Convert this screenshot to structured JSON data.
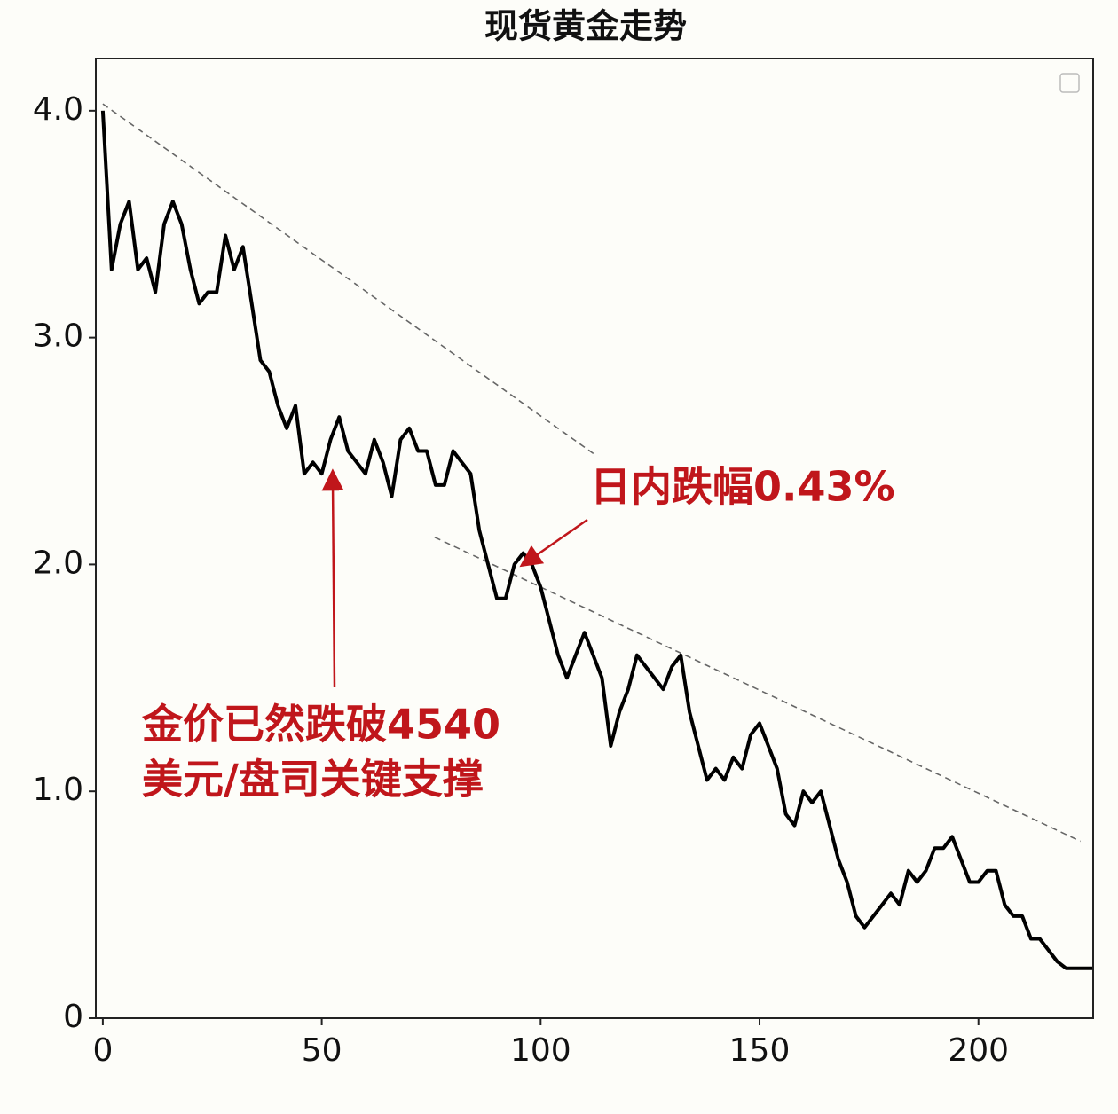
{
  "chart_data": {
    "type": "line",
    "title": "现货黄金走势",
    "x": [
      0,
      2,
      4,
      6,
      8,
      10,
      12,
      14,
      16,
      18,
      20,
      22,
      24,
      26,
      28,
      30,
      32,
      34,
      36,
      38,
      40,
      42,
      44,
      46,
      48,
      50,
      52,
      54,
      56,
      58,
      60,
      62,
      64,
      66,
      68,
      70,
      72,
      74,
      76,
      78,
      80,
      82,
      84,
      86,
      88,
      90,
      92,
      94,
      96,
      98,
      100,
      102,
      104,
      106,
      108,
      110,
      112,
      114,
      116,
      118,
      120,
      122,
      124,
      126,
      128,
      130,
      132,
      134,
      136,
      138,
      140,
      142,
      144,
      146,
      148,
      150,
      152,
      154,
      156,
      158,
      160,
      162,
      164,
      166,
      168,
      170,
      172,
      174,
      176,
      178,
      180,
      182,
      184,
      186,
      188,
      190,
      192,
      194,
      196,
      198,
      200,
      202,
      204,
      206,
      208,
      210,
      212,
      214,
      216,
      218,
      220,
      222,
      224,
      226
    ],
    "series": [
      {
        "color": "#000000",
        "values": [
          4.0,
          3.3,
          3.5,
          3.6,
          3.3,
          3.35,
          3.2,
          3.5,
          3.6,
          3.5,
          3.3,
          3.15,
          3.2,
          3.2,
          3.45,
          3.3,
          3.4,
          3.15,
          2.9,
          2.85,
          2.7,
          2.6,
          2.7,
          2.4,
          2.45,
          2.4,
          2.55,
          2.65,
          2.5,
          2.45,
          2.4,
          2.55,
          2.45,
          2.3,
          2.55,
          2.6,
          2.5,
          2.5,
          2.35,
          2.35,
          2.5,
          2.45,
          2.4,
          2.15,
          2.0,
          1.85,
          1.85,
          2.0,
          2.05,
          2.0,
          1.9,
          1.75,
          1.6,
          1.5,
          1.6,
          1.7,
          1.6,
          1.5,
          1.2,
          1.35,
          1.45,
          1.6,
          1.55,
          1.5,
          1.45,
          1.55,
          1.6,
          1.35,
          1.2,
          1.05,
          1.1,
          1.05,
          1.15,
          1.1,
          1.25,
          1.3,
          1.2,
          1.1,
          0.9,
          0.85,
          1.0,
          0.95,
          1.0,
          0.85,
          0.7,
          0.6,
          0.45,
          0.4,
          0.45,
          0.5,
          0.55,
          0.5,
          0.65,
          0.6,
          0.65,
          0.75,
          0.75,
          0.8,
          0.7,
          0.6,
          0.6,
          0.65,
          0.65,
          0.5,
          0.45,
          0.45,
          0.35,
          0.35,
          0.3,
          0.25,
          0.22,
          0.22,
          0.22,
          0.22
        ]
      }
    ],
    "reference_lines": [
      {
        "x": [
          0,
          112.7
        ],
        "y": [
          4.03,
          2.48
        ]
      },
      {
        "x": [
          75.8,
          223.3
        ],
        "y": [
          2.12,
          0.78
        ]
      }
    ],
    "annotations": [
      {
        "lines": [
          "日内跌幅0.43%"
        ],
        "xy": [
          96,
          2.0
        ]
      },
      {
        "lines": [
          "金价已然跌破4540",
          "美元/盘司关键支撑"
        ],
        "xy": [
          52.5,
          2.45
        ]
      }
    ],
    "xlim": [
      -1.6,
      226.2
    ],
    "ylim": [
      0,
      4.23
    ],
    "xticks": [
      0,
      50,
      100,
      150,
      200
    ],
    "yticks": [
      0,
      {
        "value": 1,
        "label": "1.0"
      },
      {
        "value": 2,
        "label": "2.0"
      },
      {
        "value": 3,
        "label": "3.0"
      },
      {
        "value": 4,
        "label": "4.0"
      }
    ]
  }
}
